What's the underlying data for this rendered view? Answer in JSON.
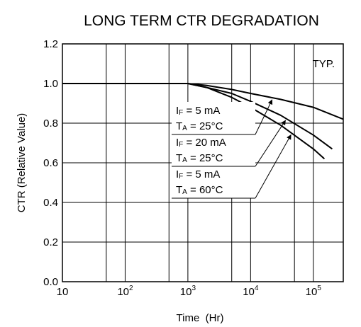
{
  "chart_data": {
    "type": "line",
    "title": "LONG TERM CTR DEGRADATION",
    "xlabel": "Time  (Hr)",
    "ylabel": "CTR (Relative Value)",
    "xscale": "log",
    "xlim": [
      10,
      300000
    ],
    "ylim": [
      0.0,
      1.2
    ],
    "yticks": [
      "0.0",
      "0.2",
      "0.4",
      "0.6",
      "0.8",
      "1.0",
      "1.2"
    ],
    "xticks": [
      {
        "base": "10",
        "exp": "",
        "value": 10
      },
      {
        "base": "10",
        "exp": "2",
        "value": 100
      },
      {
        "base": "10",
        "exp": "3",
        "value": 1000
      },
      {
        "base": "10",
        "exp": "4",
        "value": 10000
      },
      {
        "base": "10",
        "exp": "5",
        "value": 100000
      }
    ],
    "grid": true,
    "annotation": "TYP.",
    "series": [
      {
        "label_lines": [
          {
            "main": "I",
            "sub": "F",
            "rest": " = 5 mA"
          },
          {
            "main": "T",
            "sub": "A",
            "rest": " = 25°C"
          }
        ],
        "x": [
          10,
          1000,
          2000,
          5000,
          10000,
          30000,
          100000,
          300000
        ],
        "y": [
          1.0,
          1.0,
          0.99,
          0.97,
          0.95,
          0.92,
          0.88,
          0.82
        ]
      },
      {
        "label_lines": [
          {
            "main": "I",
            "sub": "F",
            "rest": " = 20 mA"
          },
          {
            "main": "T",
            "sub": "A",
            "rest": " = 25°C"
          }
        ],
        "x": [
          10,
          1000,
          2000,
          5000,
          10000,
          30000,
          100000,
          200000
        ],
        "y": [
          1.0,
          1.0,
          0.98,
          0.95,
          0.91,
          0.84,
          0.74,
          0.67
        ]
      },
      {
        "label_lines": [
          {
            "main": "I",
            "sub": "F",
            "rest": " = 5 mA"
          },
          {
            "main": "T",
            "sub": "A",
            "rest": " = 60°C"
          }
        ],
        "x": [
          10,
          1000,
          2000,
          5000,
          10000,
          30000,
          100000,
          150000
        ],
        "y": [
          1.0,
          1.0,
          0.98,
          0.93,
          0.88,
          0.79,
          0.67,
          0.62
        ]
      }
    ]
  }
}
